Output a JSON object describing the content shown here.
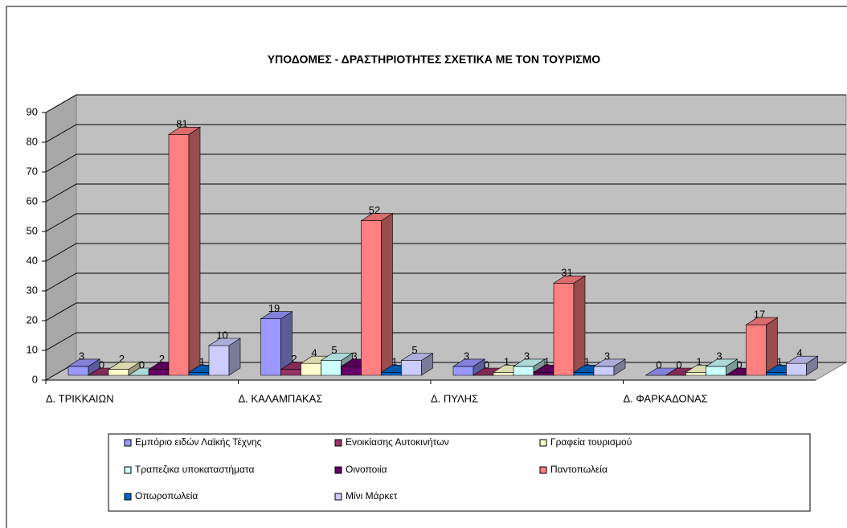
{
  "chart_data": {
    "type": "bar3d",
    "title": "ΥΠΟΔΟΜΕΣ - ΔΡΑΣΤΗΡΙΟΤΗΤΕΣ ΣΧΕΤΙΚΑ ΜΕ ΤΟΝ ΤΟΥΡΙΣΜΟ",
    "categories": [
      "Δ. ΤΡΙΚΚΑΙΩΝ",
      "Δ. ΚΑΛΑΜΠΑΚΑΣ",
      "Δ. ΠΥΛΗΣ",
      "Δ. ΦΑΡΚΑΔΟΝΑΣ"
    ],
    "series": [
      {
        "name": "Εμπόριο ειδών Λαϊκής Τέχνης",
        "color": "#9999ff",
        "values": [
          3,
          19,
          3,
          0
        ]
      },
      {
        "name": "Ενοικίασης Αυτοκινήτων",
        "color": "#993366",
        "values": [
          0,
          2,
          0,
          0
        ]
      },
      {
        "name": "Γραφεία τουρισμού",
        "color": "#ffffcc",
        "values": [
          2,
          4,
          1,
          1
        ]
      },
      {
        "name": "Τραπεζικα υποκαταστήματα",
        "color": "#ccffff",
        "values": [
          0,
          5,
          3,
          3
        ]
      },
      {
        "name": "Οινοποιία",
        "color": "#660066",
        "values": [
          2,
          3,
          1,
          0
        ]
      },
      {
        "name": "Παντοπωλεία",
        "color": "#ff8080",
        "values": [
          81,
          52,
          31,
          17
        ]
      },
      {
        "name": "Οπωροπωλεία",
        "color": "#0066cc",
        "values": [
          1,
          1,
          1,
          1
        ]
      },
      {
        "name": "Μίνι Μάρκετ",
        "color": "#ccccff",
        "values": [
          10,
          5,
          3,
          4
        ]
      }
    ],
    "ylim": [
      0,
      90
    ],
    "yticks": [
      0,
      10,
      20,
      30,
      40,
      50,
      60,
      70,
      80,
      90
    ],
    "grid": true,
    "legend": "bottom"
  }
}
